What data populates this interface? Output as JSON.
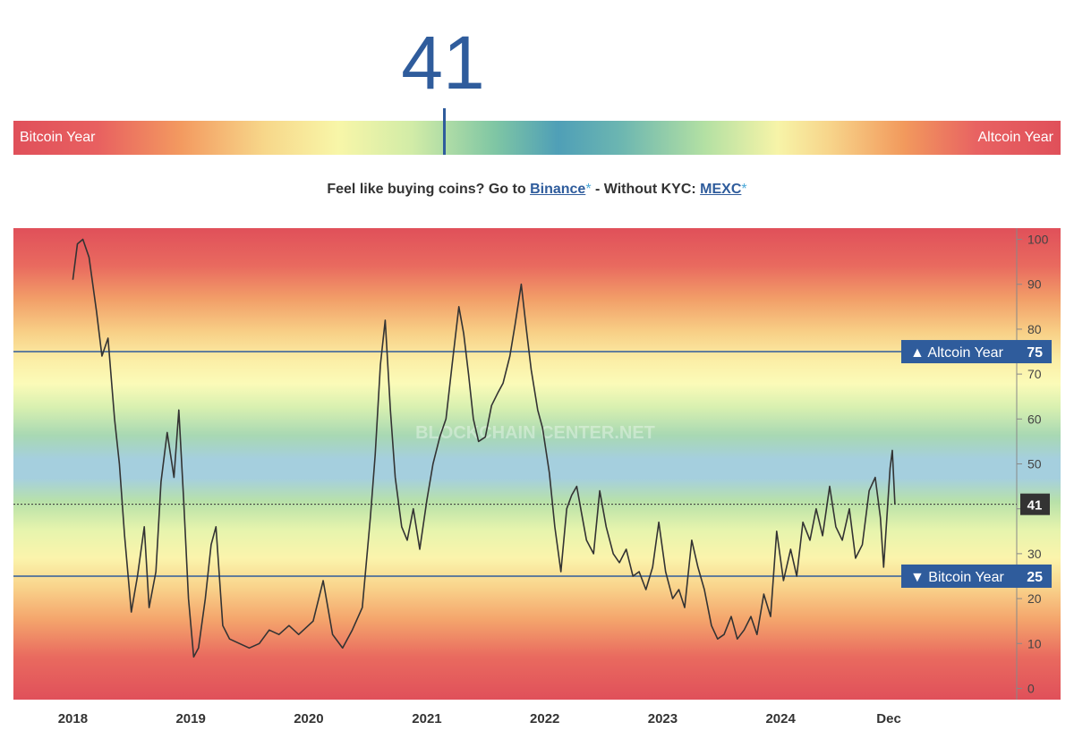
{
  "index_value": "41",
  "gauge": {
    "left_label": "Bitcoin Year",
    "right_label": "Altcoin Year"
  },
  "promo": {
    "text_before": "Feel like buying coins? Go to ",
    "binance_link": "Binance",
    "star1": "*",
    "text_middle": " - Without KYC: ",
    "mexc_link": "MEXC",
    "star2": "*"
  },
  "colors": {
    "accent_blue": "#2f5c9c",
    "line": "#333333",
    "red": "#e0505a",
    "orange": "#f5a766",
    "yellow": "#fbf6b0",
    "green": "#c8e8a6",
    "teal": "#8fc7bf",
    "blue_band": "#a9cde0"
  },
  "chart_data": {
    "type": "line",
    "x_tick_labels": [
      "2018",
      "2019",
      "2020",
      "2021",
      "2022",
      "2023",
      "2024",
      "Dec"
    ],
    "x_tick_dates": [
      "2018-01-01",
      "2019-01-01",
      "2020-01-01",
      "2021-01-01",
      "2022-01-01",
      "2023-01-01",
      "2024-01-01",
      "2024-12-01"
    ],
    "x_range": [
      "2017-07-01",
      "2026-01-01"
    ],
    "y_ticks": [
      0,
      10,
      20,
      30,
      40,
      50,
      60,
      70,
      80,
      90,
      100
    ],
    "ylim": [
      -2.5,
      102.5
    ],
    "current_value": 41,
    "current_label": "41",
    "grid": false,
    "watermark": "BLOCKCHAIN CENTER.NET",
    "thresholds": [
      {
        "label": "▲ Altcoin Year",
        "value": 75,
        "value_label": "75"
      },
      {
        "label": "▼ Bitcoin Year",
        "value": 25,
        "value_label": "25"
      }
    ],
    "series": [
      {
        "points": [
          [
            "2018-01-01",
            91
          ],
          [
            "2018-01-15",
            99
          ],
          [
            "2018-02-01",
            100
          ],
          [
            "2018-02-20",
            96
          ],
          [
            "2018-03-15",
            84
          ],
          [
            "2018-04-01",
            74
          ],
          [
            "2018-04-20",
            78
          ],
          [
            "2018-05-10",
            60
          ],
          [
            "2018-05-25",
            50
          ],
          [
            "2018-06-10",
            34
          ],
          [
            "2018-07-01",
            17
          ],
          [
            "2018-07-20",
            25
          ],
          [
            "2018-08-10",
            36
          ],
          [
            "2018-08-25",
            18
          ],
          [
            "2018-09-15",
            26
          ],
          [
            "2018-10-01",
            46
          ],
          [
            "2018-10-20",
            57
          ],
          [
            "2018-11-10",
            47
          ],
          [
            "2018-11-25",
            62
          ],
          [
            "2018-12-10",
            42
          ],
          [
            "2018-12-25",
            20
          ],
          [
            "2019-01-10",
            7
          ],
          [
            "2019-01-25",
            9
          ],
          [
            "2019-02-15",
            20
          ],
          [
            "2019-03-05",
            32
          ],
          [
            "2019-03-20",
            36
          ],
          [
            "2019-04-10",
            14
          ],
          [
            "2019-05-01",
            11
          ],
          [
            "2019-06-01",
            10
          ],
          [
            "2019-07-01",
            9
          ],
          [
            "2019-08-01",
            10
          ],
          [
            "2019-09-01",
            13
          ],
          [
            "2019-10-01",
            12
          ],
          [
            "2019-11-01",
            14
          ],
          [
            "2019-12-01",
            12
          ],
          [
            "2020-01-15",
            15
          ],
          [
            "2020-02-15",
            24
          ],
          [
            "2020-03-15",
            12
          ],
          [
            "2020-04-15",
            9
          ],
          [
            "2020-05-15",
            13
          ],
          [
            "2020-06-15",
            18
          ],
          [
            "2020-07-10",
            38
          ],
          [
            "2020-07-25",
            52
          ],
          [
            "2020-08-10",
            72
          ],
          [
            "2020-08-25",
            82
          ],
          [
            "2020-09-10",
            62
          ],
          [
            "2020-09-25",
            47
          ],
          [
            "2020-10-15",
            36
          ],
          [
            "2020-11-01",
            33
          ],
          [
            "2020-11-20",
            40
          ],
          [
            "2020-12-10",
            31
          ],
          [
            "2021-01-01",
            42
          ],
          [
            "2021-01-20",
            50
          ],
          [
            "2021-02-10",
            56
          ],
          [
            "2021-03-01",
            60
          ],
          [
            "2021-03-20",
            72
          ],
          [
            "2021-04-10",
            85
          ],
          [
            "2021-04-25",
            79
          ],
          [
            "2021-05-10",
            70
          ],
          [
            "2021-05-25",
            60
          ],
          [
            "2021-06-10",
            55
          ],
          [
            "2021-07-01",
            56
          ],
          [
            "2021-07-20",
            63
          ],
          [
            "2021-08-10",
            66
          ],
          [
            "2021-08-25",
            68
          ],
          [
            "2021-09-15",
            74
          ],
          [
            "2021-10-01",
            81
          ],
          [
            "2021-10-20",
            90
          ],
          [
            "2021-11-05",
            80
          ],
          [
            "2021-11-20",
            71
          ],
          [
            "2021-12-10",
            62
          ],
          [
            "2021-12-25",
            58
          ],
          [
            "2022-01-15",
            48
          ],
          [
            "2022-02-01",
            36
          ],
          [
            "2022-02-20",
            26
          ],
          [
            "2022-03-10",
            40
          ],
          [
            "2022-03-25",
            43
          ],
          [
            "2022-04-10",
            45
          ],
          [
            "2022-04-25",
            39
          ],
          [
            "2022-05-10",
            33
          ],
          [
            "2022-06-01",
            30
          ],
          [
            "2022-06-20",
            44
          ],
          [
            "2022-07-10",
            36
          ],
          [
            "2022-08-01",
            30
          ],
          [
            "2022-08-20",
            28
          ],
          [
            "2022-09-10",
            31
          ],
          [
            "2022-10-01",
            25
          ],
          [
            "2022-10-20",
            26
          ],
          [
            "2022-11-10",
            22
          ],
          [
            "2022-12-01",
            27
          ],
          [
            "2022-12-20",
            37
          ],
          [
            "2023-01-10",
            26
          ],
          [
            "2023-02-01",
            20
          ],
          [
            "2023-02-20",
            22
          ],
          [
            "2023-03-10",
            18
          ],
          [
            "2023-04-01",
            33
          ],
          [
            "2023-04-20",
            27
          ],
          [
            "2023-05-10",
            22
          ],
          [
            "2023-06-01",
            14
          ],
          [
            "2023-06-20",
            11
          ],
          [
            "2023-07-10",
            12
          ],
          [
            "2023-08-01",
            16
          ],
          [
            "2023-08-20",
            11
          ],
          [
            "2023-09-10",
            13
          ],
          [
            "2023-10-01",
            16
          ],
          [
            "2023-10-20",
            12
          ],
          [
            "2023-11-10",
            21
          ],
          [
            "2023-12-01",
            16
          ],
          [
            "2023-12-20",
            35
          ],
          [
            "2024-01-10",
            24
          ],
          [
            "2024-02-01",
            31
          ],
          [
            "2024-02-20",
            25
          ],
          [
            "2024-03-10",
            37
          ],
          [
            "2024-04-01",
            33
          ],
          [
            "2024-04-20",
            40
          ],
          [
            "2024-05-10",
            34
          ],
          [
            "2024-06-01",
            45
          ],
          [
            "2024-06-20",
            36
          ],
          [
            "2024-07-10",
            33
          ],
          [
            "2024-08-01",
            40
          ],
          [
            "2024-08-20",
            29
          ],
          [
            "2024-09-10",
            32
          ],
          [
            "2024-10-01",
            44
          ],
          [
            "2024-10-20",
            47
          ],
          [
            "2024-11-05",
            38
          ],
          [
            "2024-11-15",
            27
          ],
          [
            "2024-11-25",
            38
          ],
          [
            "2024-12-05",
            49
          ],
          [
            "2024-12-12",
            53
          ],
          [
            "2024-12-20",
            41
          ]
        ]
      }
    ]
  }
}
